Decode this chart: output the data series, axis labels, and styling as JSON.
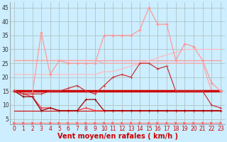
{
  "x": [
    0,
    1,
    2,
    3,
    4,
    5,
    6,
    7,
    8,
    9,
    10,
    11,
    12,
    13,
    14,
    15,
    16,
    17,
    18,
    19,
    20,
    21,
    22,
    23
  ],
  "background_color": "#cceeff",
  "grid_color": "#aabbbb",
  "xlabel": "Vent moyen/en rafales ( km/h )",
  "xlabel_color": "#cc0000",
  "xlabel_fontsize": 7,
  "tick_fontsize": 5.5,
  "ylim": [
    3,
    47
  ],
  "yticks": [
    5,
    10,
    15,
    20,
    25,
    30,
    35,
    40,
    45
  ],
  "xlim": [
    -0.5,
    23.5
  ],
  "lines": [
    {
      "y": [
        26,
        26,
        26,
        26,
        26,
        26,
        26,
        26,
        26,
        26,
        26,
        26,
        26,
        26,
        26,
        26,
        26,
        26,
        26,
        26,
        26,
        26,
        26,
        26
      ],
      "color": "#ff9999",
      "lw": 0.9,
      "marker": null,
      "zorder": 2
    },
    {
      "y": [
        26,
        26,
        26,
        26,
        26,
        26,
        26,
        26,
        26,
        26,
        25,
        25,
        25,
        25,
        25,
        25,
        25,
        25,
        25,
        25,
        25,
        25,
        15,
        15
      ],
      "color": "#ffaaaa",
      "lw": 0.9,
      "marker": null,
      "zorder": 2
    },
    {
      "y": [
        21,
        21,
        21,
        21,
        21,
        21,
        21,
        21,
        21,
        21,
        22,
        22,
        23,
        24,
        25,
        26,
        27,
        28,
        29,
        30,
        30,
        30,
        30,
        30
      ],
      "color": "#ffbbbb",
      "lw": 0.9,
      "marker": null,
      "zorder": 2
    },
    {
      "y": [
        15,
        14,
        14,
        36,
        21,
        26,
        25,
        25,
        25,
        25,
        35,
        35,
        35,
        35,
        37,
        45,
        39,
        39,
        26,
        32,
        31,
        26,
        18,
        15
      ],
      "color": "#ff9999",
      "lw": 0.9,
      "marker": "D",
      "markersize": 1.8,
      "zorder": 3
    },
    {
      "y": [
        15,
        14,
        14,
        14,
        15,
        15,
        16,
        17,
        15,
        14,
        17,
        20,
        21,
        20,
        25,
        25,
        23,
        24,
        15,
        15,
        15,
        15,
        10,
        9
      ],
      "color": "#cc3333",
      "lw": 0.9,
      "marker": "+",
      "markersize": 3,
      "zorder": 4
    },
    {
      "y": [
        15,
        15,
        15,
        15,
        15,
        15,
        15,
        15,
        15,
        15,
        15,
        15,
        15,
        15,
        15,
        15,
        15,
        15,
        15,
        15,
        15,
        15,
        15,
        15
      ],
      "color": "#cc0000",
      "lw": 2.5,
      "marker": null,
      "zorder": 2
    },
    {
      "y": [
        15,
        14,
        13,
        9,
        9,
        8,
        8,
        8,
        9,
        8,
        8,
        8,
        8,
        8,
        8,
        8,
        8,
        8,
        8,
        8,
        8,
        8,
        8,
        8
      ],
      "color": "#ff3333",
      "lw": 0.9,
      "marker": "+",
      "markersize": 3,
      "zorder": 3
    },
    {
      "y": [
        15,
        13,
        13,
        8,
        9,
        8,
        8,
        8,
        12,
        12,
        8,
        8,
        8,
        8,
        8,
        8,
        8,
        8,
        8,
        8,
        8,
        8,
        8,
        8
      ],
      "color": "#990000",
      "lw": 0.9,
      "marker": "+",
      "markersize": 3,
      "zorder": 3
    },
    {
      "y": [
        3.5,
        3.5,
        3.5,
        3.5,
        3.5,
        3.5,
        3.5,
        3.5,
        3.5,
        3.5,
        3.5,
        3.5,
        3.5,
        3.5,
        3.5,
        3.5,
        3.5,
        3.5,
        3.5,
        3.5,
        3.5,
        3.5,
        3.5,
        3.5
      ],
      "color": "#ff6666",
      "lw": 0.7,
      "marker": ">",
      "markersize": 2.5,
      "zorder": 2
    },
    {
      "y": [
        8,
        8,
        8,
        8,
        8,
        8,
        8,
        8,
        8,
        8,
        8,
        8,
        8,
        8,
        8,
        8,
        8,
        8,
        8,
        8,
        8,
        8,
        8,
        8
      ],
      "color": "#cc0000",
      "lw": 0.8,
      "marker": null,
      "zorder": 2
    }
  ]
}
